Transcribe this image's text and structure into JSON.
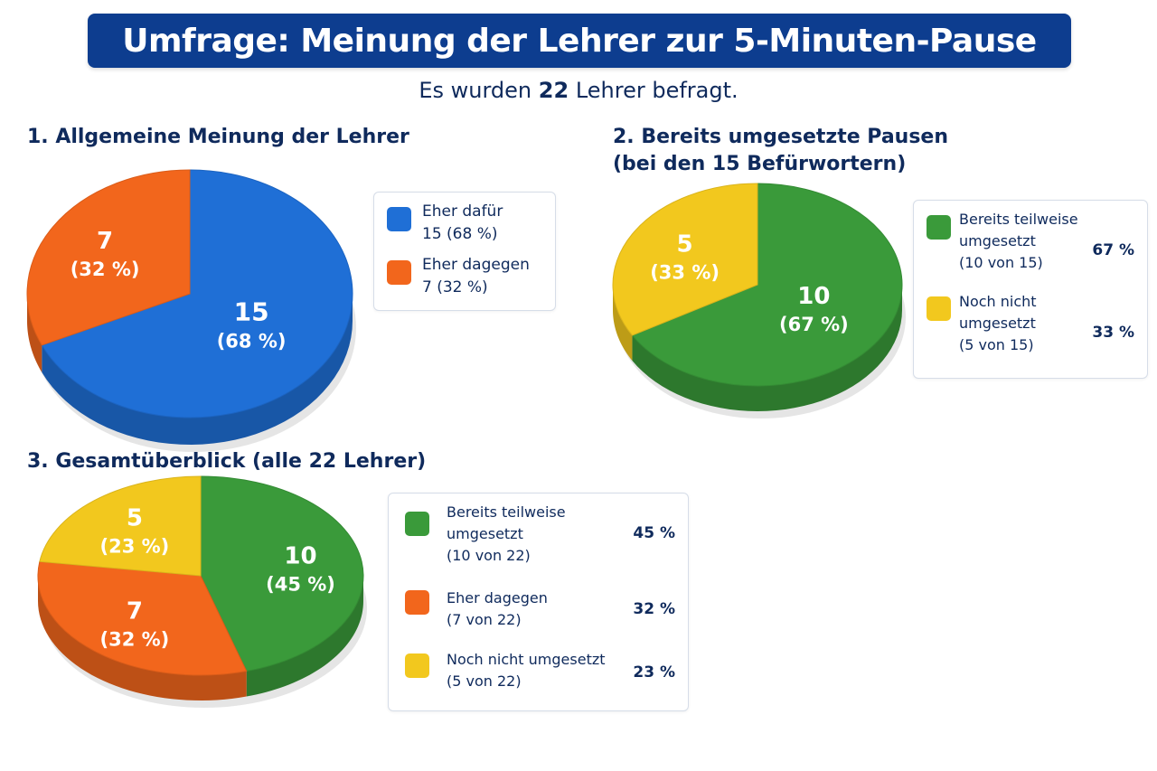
{
  "title": "Umfrage: Meinung der Lehrer zur 5-Minuten-Pause",
  "subtitle": {
    "prefix": "Es wurden",
    "count": "22",
    "suffix": "Lehrer befragt."
  },
  "colors": {
    "title_bar": "#0d3d8f",
    "blue": "#1f6fd6",
    "orange": "#f2661c",
    "green": "#3a9a3a",
    "yellow": "#f2c81e",
    "text": "#0f2a5c"
  },
  "sections": [
    {
      "title": "1. Allgemeine Meinung der Lehrer"
    },
    {
      "title_line1": "2. Bereits umgesetzte Pausen",
      "title_line2": "(bei den 15 Befürwortern)"
    },
    {
      "title": "3. Gesamtüberblick (alle 22 Lehrer)"
    }
  ],
  "chart_data": [
    {
      "type": "pie",
      "title": "1. Allgemeine Meinung der Lehrer",
      "slices": [
        {
          "name": "Eher dafür",
          "value": 15,
          "percent": 68,
          "label_value": "15",
          "label_pct": "(68 %)",
          "color": "#1f6fd6"
        },
        {
          "name": "Eher dagegen",
          "value": 7,
          "percent": 32,
          "label_value": "7",
          "label_pct": "(32 %)",
          "color": "#f2661c"
        }
      ],
      "legend": [
        {
          "line1": "Eher dafür",
          "line2": "15 (68 %)",
          "color": "#1f6fd6"
        },
        {
          "line1": "Eher dagegen",
          "line2": "7 (32 %)",
          "color": "#f2661c"
        }
      ],
      "legend_placement": "right"
    },
    {
      "type": "pie",
      "title": "2. Bereits umgesetzte Pausen (bei den 15 Befürwortern)",
      "slices": [
        {
          "name": "Bereits teilweise umgesetzt",
          "value": 10,
          "percent": 67,
          "label_value": "10",
          "label_pct": "(67 %)",
          "color": "#3a9a3a"
        },
        {
          "name": "Noch nicht umgesetzt",
          "value": 5,
          "percent": 33,
          "label_value": "5",
          "label_pct": "(33 %)",
          "color": "#f2c81e"
        }
      ],
      "legend": [
        {
          "line1": "Bereits teilweise",
          "line2": "umgesetzt",
          "line3": "(10 von 15)",
          "pct": "67 %",
          "color": "#3a9a3a"
        },
        {
          "line1": "Noch nicht",
          "line2": "umgesetzt",
          "line3": "(5 von 15)",
          "pct": "33 %",
          "color": "#f2c81e"
        }
      ],
      "legend_placement": "right"
    },
    {
      "type": "pie",
      "title": "3. Gesamtüberblick (alle 22 Lehrer)",
      "slices": [
        {
          "name": "Bereits teilweise umgesetzt",
          "value": 10,
          "percent": 45,
          "label_value": "10",
          "label_pct": "(45 %)",
          "color": "#3a9a3a"
        },
        {
          "name": "Eher dagegen",
          "value": 7,
          "percent": 32,
          "label_value": "7",
          "label_pct": "(32 %)",
          "color": "#f2661c"
        },
        {
          "name": "Noch nicht umgesetzt",
          "value": 5,
          "percent": 23,
          "label_value": "5",
          "label_pct": "(23 %)",
          "color": "#f2c81e"
        }
      ],
      "legend": [
        {
          "line1": "Bereits teilweise",
          "line2": "umgesetzt",
          "line3": "(10 von 22)",
          "pct": "45 %",
          "color": "#3a9a3a"
        },
        {
          "line1": "Eher dagegen",
          "line2": "(7 von 22)",
          "pct": "32 %",
          "color": "#f2661c"
        },
        {
          "line1": "Noch nicht umgesetzt",
          "line2": "(5 von 22)",
          "pct": "23 %",
          "color": "#f2c81e"
        }
      ],
      "legend_placement": "right"
    }
  ]
}
